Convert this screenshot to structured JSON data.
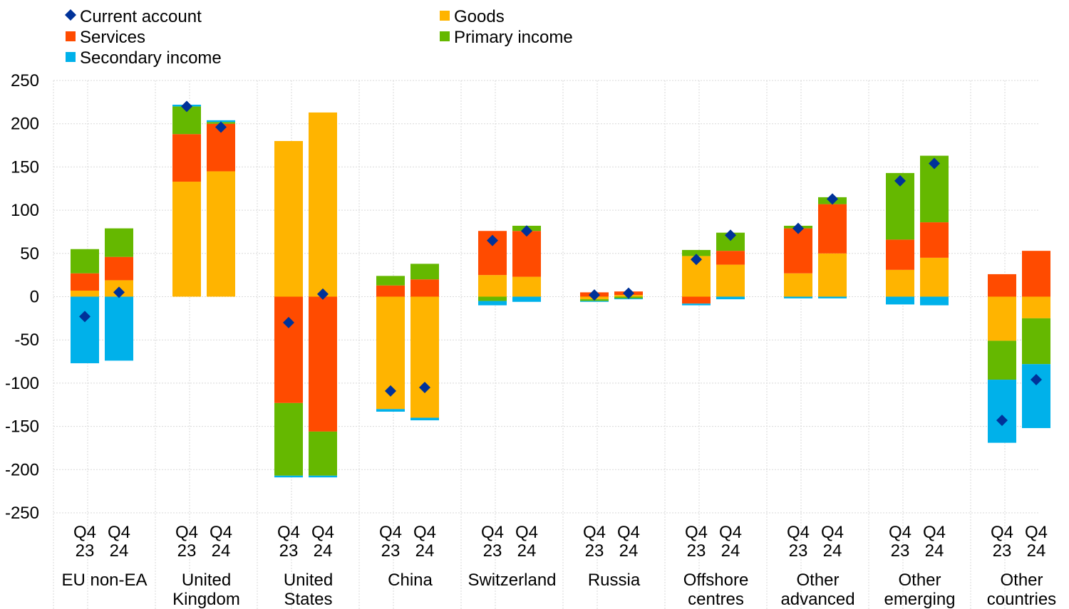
{
  "chart_data": {
    "type": "bar",
    "stacked": true,
    "title": "",
    "xlabel": "",
    "ylabel": "",
    "ylim": [
      -250,
      250
    ],
    "yticks": [
      250,
      200,
      150,
      100,
      50,
      0,
      -50,
      -100,
      -150,
      -200,
      -250
    ],
    "grid": true,
    "legend_position": "top",
    "groups": [
      {
        "label": [
          "EU non-EA"
        ],
        "periods": [
          [
            "Q4",
            "23"
          ],
          [
            "Q4",
            "24"
          ]
        ]
      },
      {
        "label": [
          "United",
          "Kingdom"
        ],
        "periods": [
          [
            "Q4",
            "23"
          ],
          [
            "Q4",
            "24"
          ]
        ]
      },
      {
        "label": [
          "United",
          "States"
        ],
        "periods": [
          [
            "Q4",
            "23"
          ],
          [
            "Q4",
            "24"
          ]
        ]
      },
      {
        "label": [
          "China"
        ],
        "periods": [
          [
            "Q4",
            "23"
          ],
          [
            "Q4",
            "24"
          ]
        ]
      },
      {
        "label": [
          "Switzerland"
        ],
        "periods": [
          [
            "Q4",
            "23"
          ],
          [
            "Q4",
            "24"
          ]
        ]
      },
      {
        "label": [
          "Russia"
        ],
        "periods": [
          [
            "Q4",
            "23"
          ],
          [
            "Q4",
            "24"
          ]
        ]
      },
      {
        "label": [
          "Offshore",
          "centres"
        ],
        "periods": [
          [
            "Q4",
            "23"
          ],
          [
            "Q4",
            "24"
          ]
        ]
      },
      {
        "label": [
          "Other",
          "advanced"
        ],
        "periods": [
          [
            "Q4",
            "23"
          ],
          [
            "Q4",
            "24"
          ]
        ]
      },
      {
        "label": [
          "Other",
          "emerging"
        ],
        "periods": [
          [
            "Q4",
            "23"
          ],
          [
            "Q4",
            "24"
          ]
        ]
      },
      {
        "label": [
          "Other",
          "countries"
        ],
        "periods": [
          [
            "Q4",
            "23"
          ],
          [
            "Q4",
            "24"
          ]
        ]
      }
    ],
    "series": [
      {
        "name": "Goods",
        "color": "#FFB400",
        "values": [
          7,
          19,
          133,
          145,
          180,
          213,
          -130,
          -140,
          25,
          23,
          -3,
          2,
          47,
          37,
          27,
          50,
          31,
          45,
          -51,
          -25
        ]
      },
      {
        "name": "Services",
        "color": "#FF4B00",
        "values": [
          20,
          27,
          55,
          55,
          -123,
          -156,
          13,
          20,
          51,
          53,
          5,
          4,
          -8,
          16,
          52,
          57,
          35,
          41,
          26,
          53
        ]
      },
      {
        "name": "Primary income",
        "color": "#65B800",
        "values": [
          28,
          33,
          32,
          2,
          -84,
          -51,
          11,
          18,
          -5,
          6,
          -2,
          -2,
          7,
          21,
          3,
          8,
          77,
          77,
          -45,
          -53
        ]
      },
      {
        "name": "Secondary income",
        "color": "#00B1EA",
        "values": [
          -77,
          -74,
          2,
          2,
          -2,
          -2,
          -3,
          -3,
          -5,
          -6,
          -1,
          -1,
          -2,
          -3,
          -2,
          -2,
          -9,
          -10,
          -73,
          -74
        ]
      }
    ],
    "current_account": {
      "name": "Current account",
      "color": "#003299",
      "values": [
        -23,
        5,
        220,
        196,
        -30,
        3,
        -109,
        -105,
        65,
        76,
        2,
        4,
        43,
        71,
        79,
        113,
        134,
        154,
        -143,
        -96
      ]
    },
    "legend": [
      {
        "name": "Current account",
        "marker": "diamond",
        "color": "#003299"
      },
      {
        "name": "Goods",
        "marker": "square",
        "color": "#FFB400"
      },
      {
        "name": "Services",
        "marker": "square",
        "color": "#FF4B00"
      },
      {
        "name": "Primary income",
        "marker": "square",
        "color": "#65B800"
      },
      {
        "name": "Secondary income",
        "marker": "square",
        "color": "#00B1EA"
      }
    ]
  }
}
